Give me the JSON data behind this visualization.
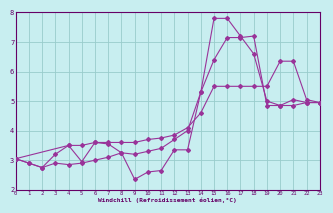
{
  "xlabel": "Windchill (Refroidissement éolien,°C)",
  "bg_color": "#c8eef0",
  "line_color": "#993399",
  "axis_color": "#660066",
  "grid_color": "#99cccc",
  "xmin": 0,
  "xmax": 23,
  "ymin": 2,
  "ymax": 8,
  "yticks": [
    2,
    3,
    4,
    5,
    6,
    7,
    8
  ],
  "xticks": [
    0,
    1,
    2,
    3,
    4,
    5,
    6,
    7,
    8,
    9,
    10,
    11,
    12,
    13,
    14,
    15,
    16,
    17,
    18,
    19,
    20,
    21,
    22,
    23
  ],
  "line1_x": [
    0,
    1,
    2,
    3,
    4,
    5,
    6,
    7,
    8,
    9,
    10,
    11,
    12,
    13,
    14,
    15,
    16,
    17,
    18,
    19,
    20,
    21,
    22,
    23
  ],
  "line1_y": [
    3.05,
    2.9,
    2.75,
    3.2,
    3.5,
    2.95,
    3.6,
    3.55,
    3.25,
    2.35,
    2.6,
    2.65,
    3.35,
    3.35,
    5.3,
    7.8,
    7.8,
    7.2,
    6.6,
    5.0,
    4.85,
    5.05,
    4.95,
    4.95
  ],
  "line2_x": [
    0,
    1,
    2,
    3,
    4,
    5,
    6,
    7,
    8,
    9,
    10,
    11,
    12,
    13,
    14,
    15,
    16,
    17,
    18,
    19,
    20,
    21,
    22,
    23
  ],
  "line2_y": [
    3.05,
    2.9,
    2.75,
    2.9,
    2.85,
    2.9,
    3.0,
    3.1,
    3.25,
    3.2,
    3.3,
    3.4,
    3.7,
    4.0,
    5.3,
    6.4,
    7.15,
    7.15,
    7.2,
    4.85,
    4.85,
    4.85,
    4.95,
    4.95
  ],
  "line3_x": [
    0,
    4,
    5,
    6,
    7,
    8,
    9,
    10,
    11,
    12,
    13,
    14,
    15,
    16,
    17,
    18,
    19,
    20,
    21,
    22,
    23
  ],
  "line3_y": [
    3.05,
    3.5,
    3.5,
    3.6,
    3.6,
    3.6,
    3.6,
    3.7,
    3.75,
    3.85,
    4.1,
    4.6,
    5.5,
    5.5,
    5.5,
    5.5,
    5.5,
    6.35,
    6.35,
    5.05,
    4.95
  ]
}
